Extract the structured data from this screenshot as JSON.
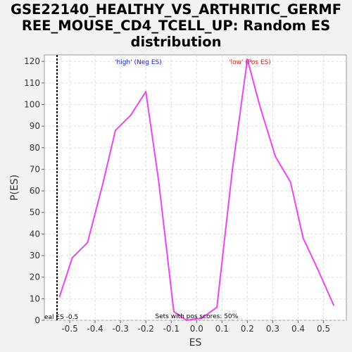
{
  "chart_data": {
    "type": "line",
    "title_lines": [
      "GSE22140_HEALTHY_VS_ARTHRITIC_GERMF",
      "REE_MOUSE_CD4_TCELL_UP: Random ES",
      "distribution"
    ],
    "xlabel": "ES",
    "ylabel": "P(ES)",
    "xlim": [
      -0.6,
      0.59
    ],
    "ylim": [
      0,
      123
    ],
    "xticks": [
      -0.5,
      -0.4,
      -0.3,
      -0.2,
      -0.1,
      0.0,
      0.1,
      0.2,
      0.3,
      0.4,
      0.5
    ],
    "xtick_labels": [
      "-0.5",
      "-0.4",
      "-0.3",
      "-0.2",
      "-0.1",
      "0.0",
      "0.1",
      "0.2",
      "0.3",
      "0.4",
      "0.5"
    ],
    "yticks": [
      0,
      10,
      20,
      30,
      40,
      50,
      60,
      70,
      80,
      90,
      100,
      110,
      120
    ],
    "ytick_labels": [
      "0",
      "10",
      "20",
      "30",
      "40",
      "50",
      "60",
      "70",
      "80",
      "90",
      "100",
      "110",
      "120"
    ],
    "grid": true,
    "line_color": "#ee44ee",
    "x": [
      -0.54,
      -0.49,
      -0.43,
      -0.37,
      -0.32,
      -0.26,
      -0.2,
      -0.15,
      -0.09,
      -0.04,
      0.02,
      0.08,
      0.14,
      0.2,
      0.25,
      0.31,
      0.37,
      0.42,
      0.48,
      0.54
    ],
    "y": [
      11,
      29,
      36,
      63,
      88,
      95,
      106,
      65,
      4,
      0,
      1,
      6,
      69,
      121,
      99,
      76,
      64,
      38,
      23,
      7
    ],
    "real_es": -0.55,
    "real_es_label": "eal ES -0.5",
    "annotation_neg": "'high' (Neg ES)",
    "annotation_pos": "'low' (Pos ES)",
    "annotation_neg_color": "#2222cc",
    "annotation_pos_color": "#dd2222",
    "footer": "Sets with pos scores: 50%"
  }
}
